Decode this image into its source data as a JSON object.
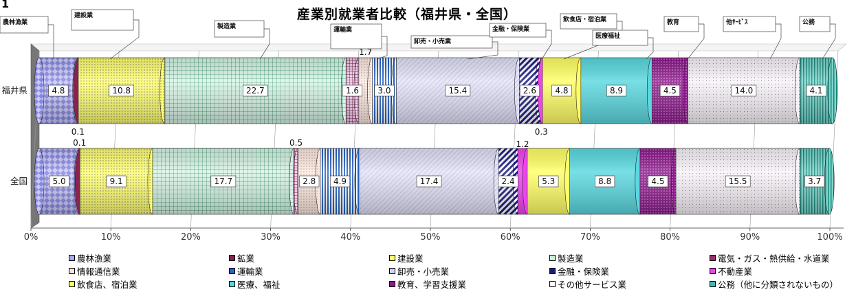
{
  "page": {
    "figure_number": "1"
  },
  "chart_data": {
    "type": "bar",
    "orientation": "horizontal-stacked-percent",
    "title": "産業別就業者比較（福井県・全国）",
    "categories": [
      "福井県",
      "全国"
    ],
    "xlim": [
      0,
      100
    ],
    "x_ticks": [
      "0%",
      "10%",
      "20%",
      "30%",
      "40%",
      "50%",
      "60%",
      "70%",
      "80%",
      "90%",
      "100%"
    ],
    "grid": true,
    "legend_position": "bottom",
    "series": [
      {
        "name": "農林漁業",
        "color": "#a9a9f0",
        "pattern": "diamond",
        "values": [
          4.8,
          5.0
        ]
      },
      {
        "name": "鉱業",
        "color": "#8b2252",
        "pattern": "solid",
        "values": [
          0.1,
          0.1
        ]
      },
      {
        "name": "建設業",
        "color": "#ffff66",
        "pattern": "dots",
        "values": [
          10.8,
          9.1
        ]
      },
      {
        "name": "製造業",
        "color": "#ccf0dc",
        "pattern": "grid",
        "values": [
          22.7,
          17.7
        ]
      },
      {
        "name": "電気・ガス・熱供給・水道業",
        "color": "#9b2f6f",
        "pattern": "grid",
        "values": [
          1.6,
          0.5
        ]
      },
      {
        "name": "情報通信業",
        "color": "#ffe6dc",
        "pattern": "dots",
        "values": [
          1.7,
          2.8
        ]
      },
      {
        "name": "運輸業",
        "color": "#2e63c8",
        "pattern": "vlines",
        "values": [
          3.0,
          4.9
        ]
      },
      {
        "name": "卸売・小売業",
        "color": "#d4d4f0",
        "pattern": "diag",
        "values": [
          15.4,
          17.4
        ]
      },
      {
        "name": "金融・保険業",
        "color": "#1a1a80",
        "pattern": "thickdiag",
        "values": [
          2.6,
          2.4
        ]
      },
      {
        "name": "不動産業",
        "color": "#ee44ee",
        "pattern": "solid",
        "values": [
          0.3,
          1.2
        ]
      },
      {
        "name": "飲食店、宿泊業",
        "color": "#ffff66",
        "pattern": "solid",
        "values": [
          4.8,
          5.3
        ]
      },
      {
        "name": "医療、福祉",
        "color": "#5ad8e0",
        "pattern": "solid",
        "values": [
          8.9,
          8.8
        ]
      },
      {
        "name": "教育、学習支援業",
        "color": "#8b1a8b",
        "pattern": "dots",
        "values": [
          4.5,
          4.5
        ]
      },
      {
        "name": "その他サービス業",
        "color": "#f4ecf4",
        "pattern": "dots",
        "values": [
          14.0,
          15.5
        ]
      },
      {
        "name": "公務（他に分類されないもの）",
        "color": "#46b8ac",
        "pattern": "vlines",
        "values": [
          4.1,
          3.7
        ]
      }
    ],
    "data_labels": [
      [
        {
          "s": 0,
          "text": "4.8"
        },
        {
          "s": 1,
          "text": "0.1"
        },
        {
          "s": 2,
          "text": "10.8"
        },
        {
          "s": 3,
          "text": "22.7"
        },
        {
          "s": 4,
          "text": "1.6"
        },
        {
          "s": 5,
          "text": "1.7"
        },
        {
          "s": 6,
          "text": "3.0"
        },
        {
          "s": 7,
          "text": "15.4"
        },
        {
          "s": 8,
          "text": "2.6"
        },
        {
          "s": 9,
          "text": "0.3"
        },
        {
          "s": 10,
          "text": "4.8"
        },
        {
          "s": 11,
          "text": "8.9"
        },
        {
          "s": 12,
          "text": "4.5"
        },
        {
          "s": 13,
          "text": "14.0"
        },
        {
          "s": 14,
          "text": "4.1"
        }
      ],
      [
        {
          "s": 0,
          "text": "5.0"
        },
        {
          "s": 1,
          "text": "0.1"
        },
        {
          "s": 2,
          "text": "9.1"
        },
        {
          "s": 3,
          "text": "17.7"
        },
        {
          "s": 4,
          "text": "0.5"
        },
        {
          "s": 5,
          "text": "2.8"
        },
        {
          "s": 6,
          "text": "4.9"
        },
        {
          "s": 7,
          "text": "17.4"
        },
        {
          "s": 8,
          "text": "2.4"
        },
        {
          "s": 9,
          "text": "1.2"
        },
        {
          "s": 10,
          "text": "5.3"
        },
        {
          "s": 11,
          "text": "8.8"
        },
        {
          "s": 12,
          "text": "4.5"
        },
        {
          "s": 13,
          "text": "15.5"
        },
        {
          "s": 14,
          "text": "3.7"
        }
      ]
    ],
    "callouts": [
      "農林漁業",
      "建設業",
      "製造業",
      "運輸業",
      "卸売・小売業",
      "金融・保険業",
      "飲食店・宿泊業",
      "医療福祉",
      "教育",
      "他ｻｰﾋﾞｽ",
      "公務"
    ]
  }
}
